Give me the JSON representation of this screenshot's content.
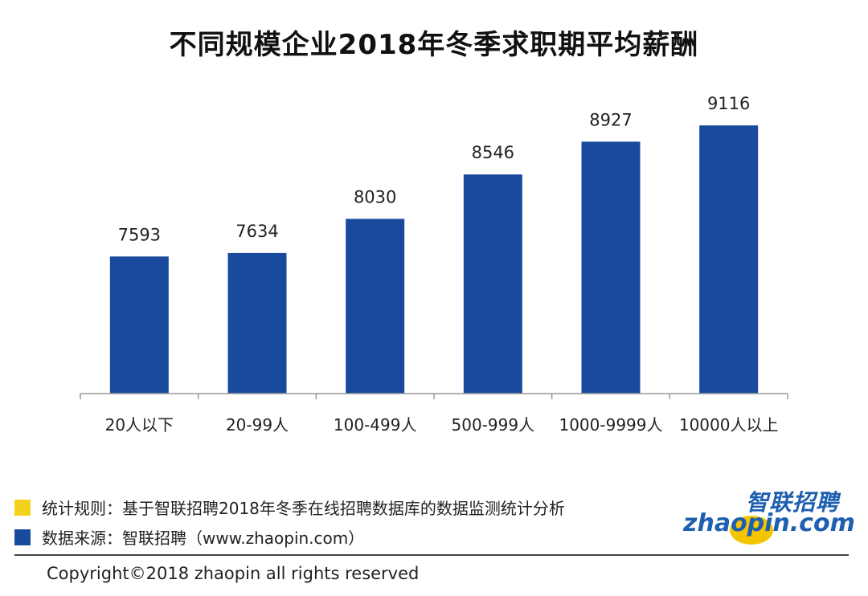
{
  "title": "不同规模企业2018年冬季求职期平均薪酬",
  "chart_data": {
    "type": "bar",
    "title": "不同规模企业2018年冬季求职期平均薪酬",
    "categories": [
      "20人以下",
      "20-99人",
      "100-499人",
      "500-999人",
      "1000-9999人",
      "10000人以上"
    ],
    "values": [
      7593,
      7634,
      8030,
      8546,
      8927,
      9116
    ],
    "data_labels": [
      "7593",
      "7634",
      "8030",
      "8546",
      "8927",
      "9116"
    ],
    "xlabel": "",
    "ylabel": "",
    "ylim": [
      6000,
      9500
    ],
    "grid": false,
    "bar_color": "#1a4a9e"
  },
  "legend": {
    "rule": {
      "text": "统计规则：基于智联招聘2018年冬季在线招聘数据库的数据监测统计分析",
      "color": "#f2d21a"
    },
    "source": {
      "text": "数据来源：智联招聘（www.zhaopin.com）",
      "color": "#1a4a9e"
    }
  },
  "copyright": "Copyright©2018 zhaopin all rights reserved",
  "brand": {
    "logo_cn": "智联招聘",
    "logo_en": "zhaopin.com"
  }
}
